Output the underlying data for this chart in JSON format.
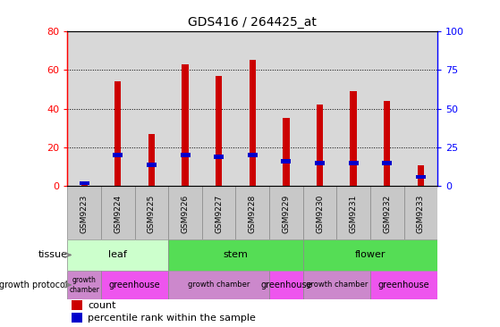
{
  "title": "GDS416 / 264425_at",
  "samples": [
    "GSM9223",
    "GSM9224",
    "GSM9225",
    "GSM9226",
    "GSM9227",
    "GSM9228",
    "GSM9229",
    "GSM9230",
    "GSM9231",
    "GSM9232",
    "GSM9233"
  ],
  "counts": [
    2,
    54,
    27,
    63,
    57,
    65,
    35,
    42,
    49,
    44,
    11
  ],
  "percentiles": [
    2,
    20,
    14,
    20,
    19,
    20,
    16,
    15,
    15,
    15,
    6
  ],
  "ylim_left": [
    0,
    80
  ],
  "ylim_right": [
    0,
    100
  ],
  "yticks_left": [
    0,
    20,
    40,
    60,
    80
  ],
  "yticks_right": [
    0,
    25,
    50,
    75,
    100
  ],
  "bar_color_count": "#cc0000",
  "bar_color_pct": "#0000cc",
  "bar_width": 0.55,
  "tissue_groups": [
    {
      "label": "leaf",
      "start": 0,
      "end": 2,
      "color": "#ccffcc"
    },
    {
      "label": "stem",
      "start": 3,
      "end": 6,
      "color": "#55dd55"
    },
    {
      "label": "flower",
      "start": 7,
      "end": 10,
      "color": "#55dd55"
    }
  ],
  "growth_groups": [
    {
      "label": "growth\nchamber",
      "start": 0,
      "end": 0,
      "color": "#cc88cc",
      "fontsize": 5.5
    },
    {
      "label": "greenhouse",
      "start": 1,
      "end": 2,
      "color": "#ee55ee",
      "fontsize": 7
    },
    {
      "label": "growth chamber",
      "start": 3,
      "end": 5,
      "color": "#cc88cc",
      "fontsize": 6
    },
    {
      "label": "greenhouse",
      "start": 6,
      "end": 6,
      "color": "#ee55ee",
      "fontsize": 7
    },
    {
      "label": "growth chamber",
      "start": 7,
      "end": 8,
      "color": "#cc88cc",
      "fontsize": 6
    },
    {
      "label": "greenhouse",
      "start": 9,
      "end": 10,
      "color": "#ee55ee",
      "fontsize": 7
    }
  ],
  "tissue_row_label": "tissue",
  "growth_row_label": "growth protocol",
  "legend_count_label": "count",
  "legend_pct_label": "percentile rank within the sample",
  "background_color": "#ffffff",
  "axis_bg_color": "#d8d8d8",
  "sample_label_bg": "#c8c8c8"
}
